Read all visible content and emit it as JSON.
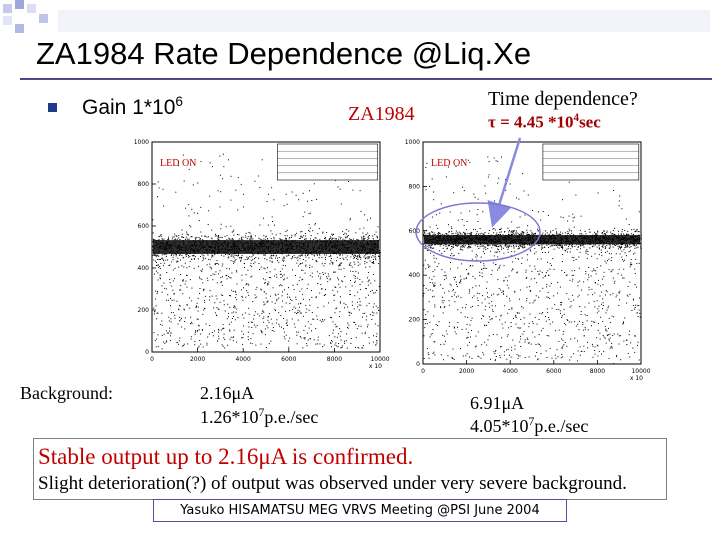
{
  "slide": {
    "title": "ZA1984 Rate Dependence @Liq.Xe",
    "gain_label": "Gain 1*10",
    "gain_exp": "6",
    "center_label": "ZA1984",
    "time_q": "Time dependence?",
    "tau_prefix": "τ = 4.45 *10",
    "tau_exp": "4",
    "tau_suffix": "sec",
    "background_label": "Background:",
    "left_current": "2.16μA",
    "left_rate_prefix": "1.26*10",
    "left_rate_exp": "7",
    "left_rate_suffix": "p.e./sec",
    "right_current": "6.91μA",
    "right_rate_prefix": "4.05*10",
    "right_rate_exp": "7",
    "right_rate_suffix": "p.e./sec",
    "stable_text": "Stable output up to 2.16μA is confirmed.",
    "slight_text": "Slight deterioration(?) of output was observed under very severe background.",
    "footer": "Yasuko HISAMATSU MEG VRVS Meeting @PSI June 2004",
    "colors": {
      "accent_red": "#c00000",
      "title_rule": "#4a4a8a",
      "arrow": "#8a8ae0"
    }
  },
  "chart_data": [
    {
      "type": "scatter",
      "panel": "left",
      "annotation": "LED ON",
      "xlim": [
        0,
        10000
      ],
      "ylim": [
        0,
        1000
      ],
      "x_ticks": [
        "0",
        "2000",
        "4000",
        "6000",
        "8000",
        "10000"
      ],
      "y_ticks": [
        "0",
        "200",
        "400",
        "600",
        "800",
        "1000"
      ],
      "x_exp_label": "x 10",
      "band": {
        "center": 500,
        "half_width": 55
      },
      "background_level": 300
    },
    {
      "type": "scatter",
      "panel": "right",
      "annotation": "LED ON",
      "xlim": [
        0,
        10000
      ],
      "ylim": [
        0,
        1000
      ],
      "x_ticks": [
        "0",
        "2000",
        "4000",
        "6000",
        "8000",
        "10000"
      ],
      "y_ticks": [
        "0",
        "200",
        "400",
        "600",
        "800",
        "1000"
      ],
      "x_exp_label": "x 10",
      "band": {
        "center": 560,
        "half_width": 35
      },
      "background_level": 350
    }
  ]
}
